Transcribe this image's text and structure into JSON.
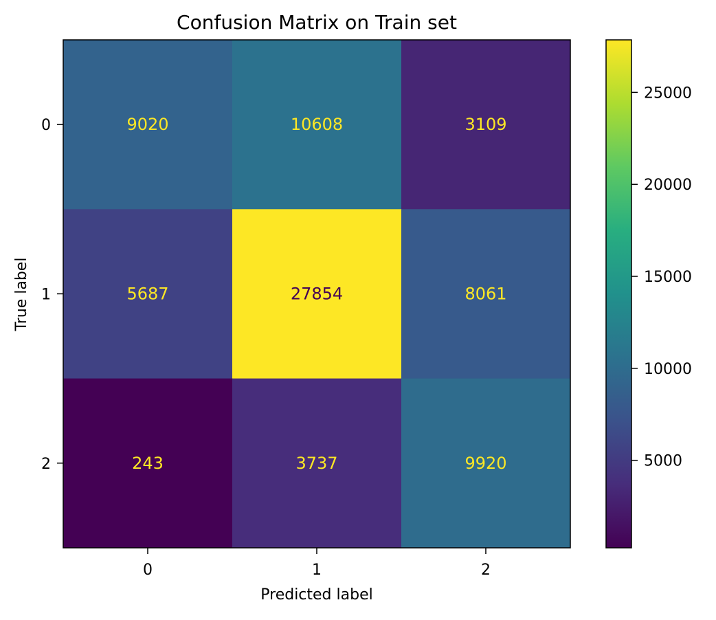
{
  "chart_data": {
    "type": "heatmap",
    "title": "Confusion Matrix on Train set",
    "xlabel": "Predicted label",
    "ylabel": "True label",
    "x_categories": [
      "0",
      "1",
      "2"
    ],
    "y_categories": [
      "0",
      "1",
      "2"
    ],
    "values": [
      [
        9020,
        10608,
        3109
      ],
      [
        5687,
        27854,
        8061
      ],
      [
        243,
        3737,
        9920
      ]
    ],
    "colormap": "viridis",
    "colorbar": {
      "range": [
        243,
        27854
      ],
      "ticks": [
        5000,
        10000,
        15000,
        20000,
        25000
      ],
      "tick_labels": [
        "5000",
        "10000",
        "15000",
        "20000",
        "25000"
      ]
    },
    "text_colors": {
      "light": "#fde725",
      "dark": "#440154"
    }
  }
}
